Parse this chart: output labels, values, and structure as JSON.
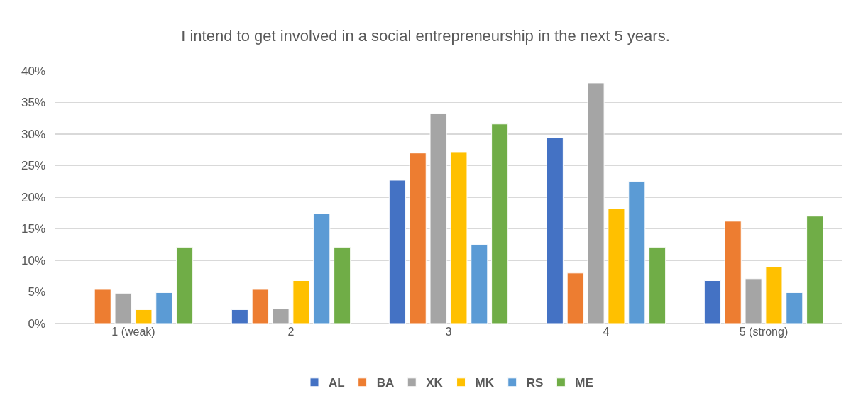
{
  "chart_data": {
    "type": "bar",
    "title": "I intend to get involved in a social entrepreneurship in the next 5 years.",
    "categories": [
      "1 (weak)",
      "2",
      "3",
      "4",
      "5 (strong)"
    ],
    "series": [
      {
        "name": "AL",
        "color": "#4472c4",
        "values": [
          null,
          2.2,
          22.7,
          29.4,
          6.8
        ]
      },
      {
        "name": "BA",
        "color": "#ed7d31",
        "values": [
          5.4,
          5.4,
          27.0,
          8.0,
          16.2
        ]
      },
      {
        "name": "XK",
        "color": "#a5a5a5",
        "values": [
          4.8,
          2.3,
          33.3,
          38.1,
          7.1
        ]
      },
      {
        "name": "MK",
        "color": "#ffc000",
        "values": [
          2.2,
          6.8,
          27.2,
          18.2,
          9.0
        ]
      },
      {
        "name": "RS",
        "color": "#5b9bd5",
        "values": [
          4.9,
          17.4,
          12.5,
          22.5,
          4.9
        ]
      },
      {
        "name": "ME",
        "color": "#70ad47",
        "values": [
          12.1,
          12.1,
          31.6,
          12.1,
          17.0
        ]
      }
    ],
    "ylim": [
      0,
      40
    ],
    "yticks": [
      {
        "value": 0,
        "label": "0%"
      },
      {
        "value": 5,
        "label": "5%"
      },
      {
        "value": 10,
        "label": "10%"
      },
      {
        "value": 15,
        "label": "15%"
      },
      {
        "value": 20,
        "label": "20%"
      },
      {
        "value": 25,
        "label": "25%"
      },
      {
        "value": 30,
        "label": "30%"
      },
      {
        "value": 35,
        "label": "35%"
      },
      {
        "value": 40,
        "label": "40%"
      }
    ],
    "grid": "y",
    "legend": "bottom"
  }
}
